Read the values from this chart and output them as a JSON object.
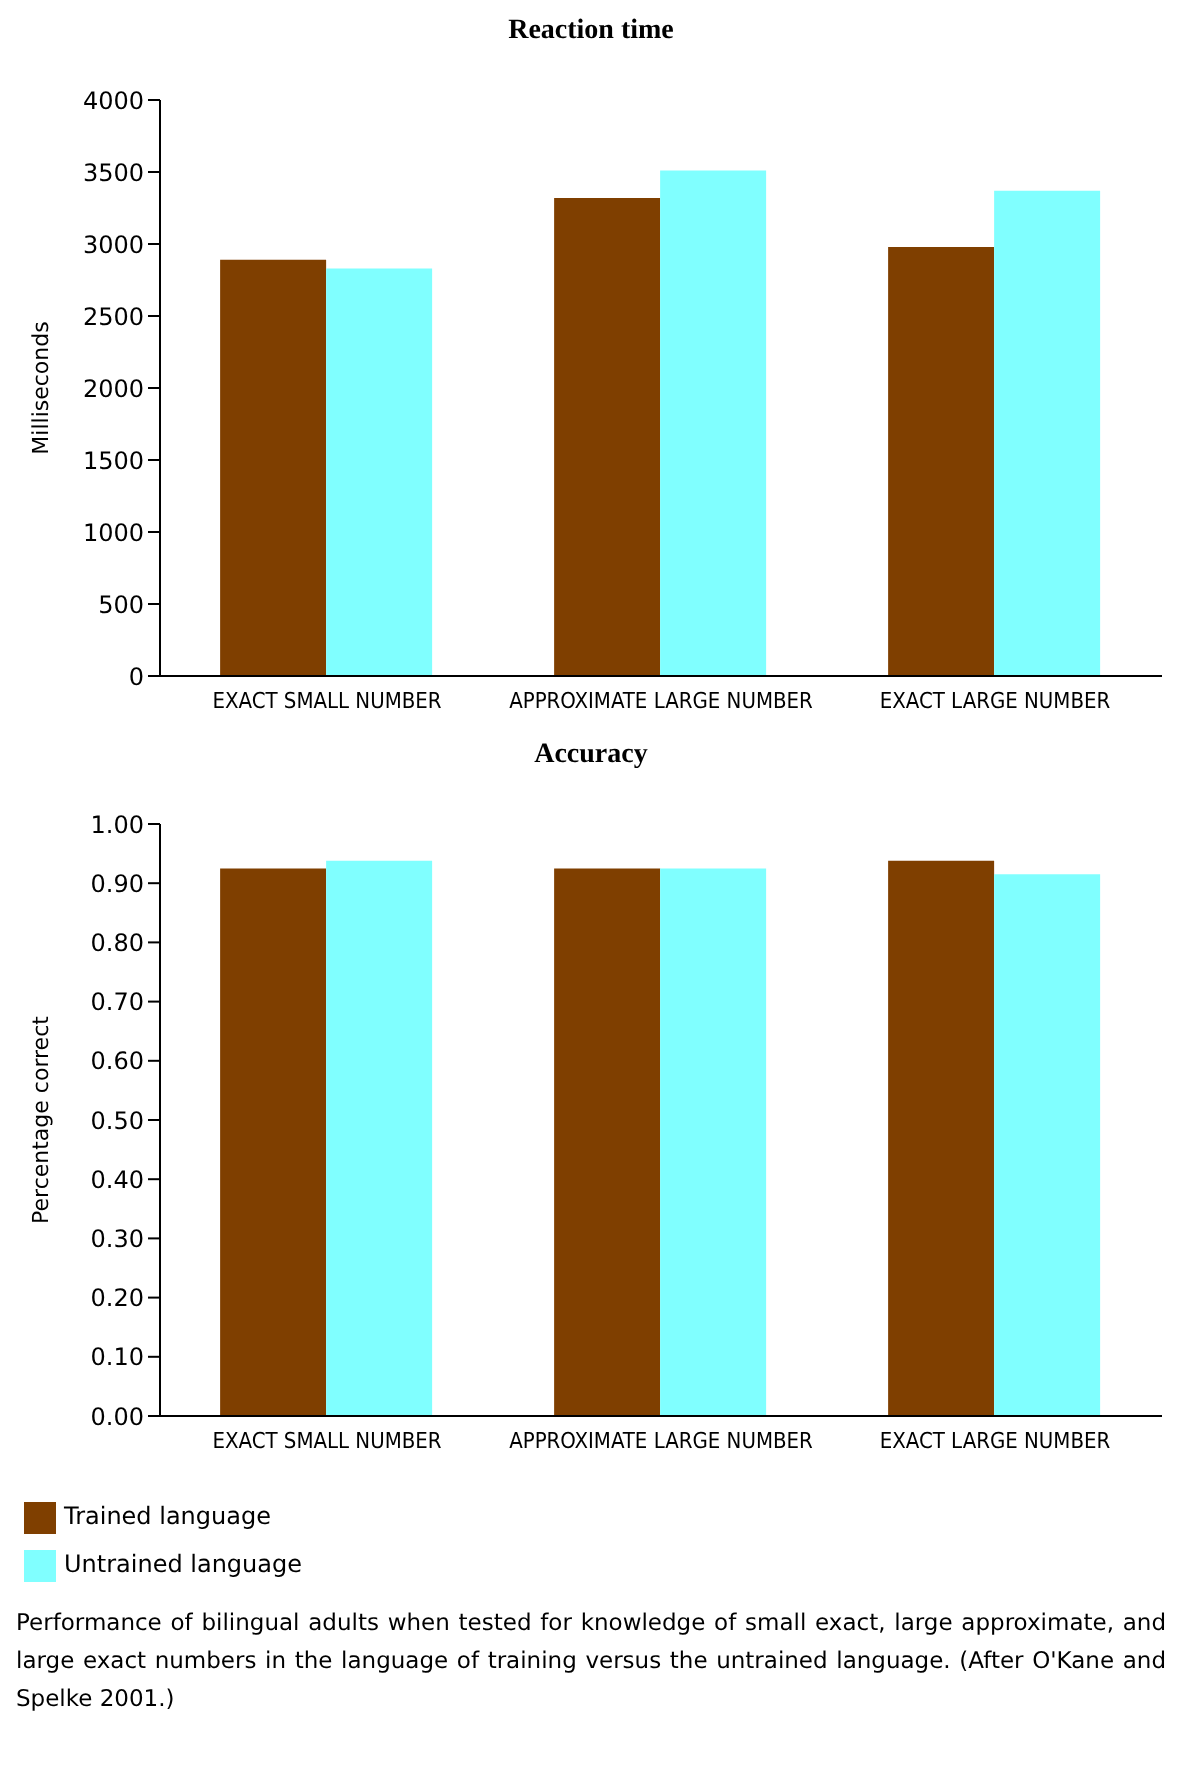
{
  "chart_data": [
    {
      "type": "bar",
      "title": "Reaction time",
      "ylabel": "Milliseconds",
      "categories": [
        "EXACT SMALL NUMBER",
        "APPROXIMATE LARGE NUMBER",
        "EXACT LARGE NUMBER"
      ],
      "series": [
        {
          "color": "#7f3f00",
          "values": [
            2890,
            3320,
            2980
          ]
        },
        {
          "color": "#80ffff",
          "values": [
            2830,
            3510,
            3370
          ]
        }
      ],
      "ylim": [
        0,
        4000
      ],
      "yticks": [
        0,
        500,
        1000,
        1500,
        2000,
        2500,
        3000,
        3500,
        4000
      ],
      "grid": false,
      "legend": false
    },
    {
      "type": "bar",
      "title": "Accuracy",
      "ylabel": "Percentage correct",
      "categories": [
        "EXACT SMALL NUMBER",
        "APPROXIMATE LARGE NUMBER",
        "EXACT LARGE NUMBER"
      ],
      "series": [
        {
          "name": "Trained language",
          "color": "#7f3f00",
          "values": [
            0.925,
            0.925,
            0.938
          ]
        },
        {
          "name": "Untrained language",
          "color": "#80ffff",
          "values": [
            0.938,
            0.925,
            0.915
          ]
        }
      ],
      "ylim": [
        0,
        1
      ],
      "yticks": [
        {
          "value": 0,
          "label": "0.00"
        },
        {
          "value": 0.1,
          "label": "0.10"
        },
        {
          "value": 0.2,
          "label": "0.20"
        },
        {
          "value": 0.3,
          "label": "0.30"
        },
        {
          "value": 0.4,
          "label": "0.40"
        },
        {
          "value": 0.5,
          "label": "0.50"
        },
        {
          "value": 0.6,
          "label": "0.60"
        },
        {
          "value": 0.7,
          "label": "0.70"
        },
        {
          "value": 0.8,
          "label": "0.80"
        },
        {
          "value": 0.9,
          "label": "0.90"
        },
        {
          "value": 1,
          "label": "1.00"
        }
      ],
      "grid": false,
      "legend": "bottom left",
      "annotations": [
        "Performance of bilingual adults when tested for knowledge of small exact, large approximate, and large exact numbers in the language of training versus the untrained language. (After O'Kane and Spelke 2001.)"
      ]
    }
  ]
}
